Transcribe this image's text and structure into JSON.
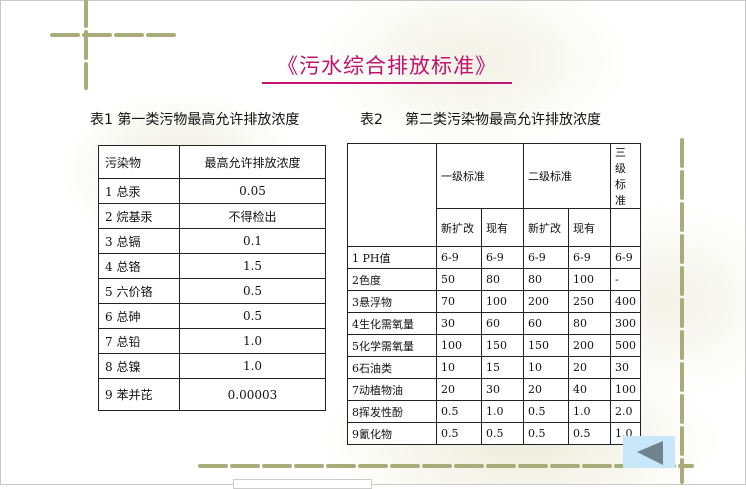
{
  "title": "《污水综合排放标准》",
  "table1": {
    "caption": "表1 第一类污物最高允许排放浓度",
    "headers": [
      "污染物",
      "最高允许排放浓度"
    ],
    "rows": [
      [
        "1 总汞",
        "0.05"
      ],
      [
        "2 烷基汞",
        "不得检出"
      ],
      [
        "3 总镉",
        "0.1"
      ],
      [
        "4 总铬",
        "1.5"
      ],
      [
        "5 六价铬",
        "0.5"
      ],
      [
        "6 总砷",
        "0.5"
      ],
      [
        "7 总铅",
        "1.0"
      ],
      [
        "8 总镍",
        "1.0"
      ],
      [
        "9 苯并芘",
        "0.00003"
      ]
    ]
  },
  "table2": {
    "caption_num": "表2",
    "caption": "第二类污染物最高允许排放浓度",
    "headers": [
      "一级标准",
      "二级标准",
      "三级标准"
    ],
    "subheaders": [
      "新扩改",
      "现有",
      "新扩改",
      "现有"
    ],
    "rows": [
      [
        "1 PH值",
        "6-9",
        "6-9",
        "6-9",
        "6-9",
        "6-9"
      ],
      [
        "2色度",
        "50",
        "80",
        "80",
        "100",
        "-"
      ],
      [
        "3悬浮物",
        "70",
        "100",
        "200",
        "250",
        "400"
      ],
      [
        "4生化需氧量",
        "30",
        "60",
        "60",
        "80",
        "300"
      ],
      [
        "5化学需氧量",
        "100",
        "150",
        "150",
        "200",
        "500"
      ],
      [
        "6石油类",
        "10",
        "15",
        "10",
        "20",
        "30"
      ],
      [
        "7动植物油",
        "20",
        "30",
        "20",
        "40",
        "100"
      ],
      [
        "8挥发性酚",
        "0.5",
        "1.0",
        "0.5",
        "1.0",
        "2.0"
      ],
      [
        "9氰化物",
        "0.5",
        "0.5",
        "0.5",
        "0.5",
        "1.0"
      ]
    ]
  },
  "nav": {
    "icon": "triangle-left-icon",
    "color": "#c8e8fa",
    "arrow_color": "#6e8290"
  },
  "colors": {
    "title": "#c0146e",
    "vine": "#a8ac78"
  }
}
